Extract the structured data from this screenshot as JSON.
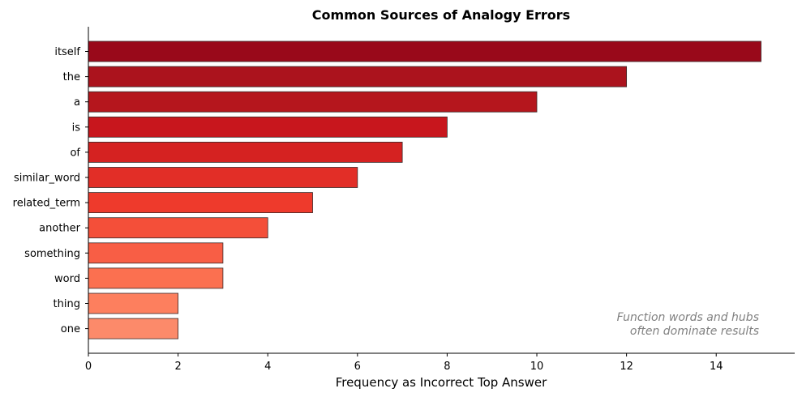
{
  "chart_data": {
    "type": "bar",
    "orientation": "horizontal",
    "title": "Common Sources of Analogy Errors",
    "xlabel": "Frequency as Incorrect Top Answer",
    "ylabel": "",
    "xlim": [
      0,
      15.75
    ],
    "xticks": [
      0,
      2,
      4,
      6,
      8,
      10,
      12,
      14
    ],
    "grid": false,
    "categories": [
      "itself",
      "the",
      "a",
      "is",
      "of",
      "similar_word",
      "related_term",
      "another",
      "something",
      "word",
      "thing",
      "one"
    ],
    "values": [
      15,
      12,
      10,
      8,
      7,
      6,
      5,
      4,
      3,
      3,
      2,
      2
    ],
    "colors": [
      "#99091a",
      "#ab131d",
      "#b5161d",
      "#c8161d",
      "#d52221",
      "#e22e27",
      "#ee3a2c",
      "#f44f39",
      "#f85e45",
      "#fb7050",
      "#fd7f5e",
      "#fc8a6a"
    ],
    "annotation": [
      "Function words and hubs",
      "often dominate results"
    ]
  }
}
